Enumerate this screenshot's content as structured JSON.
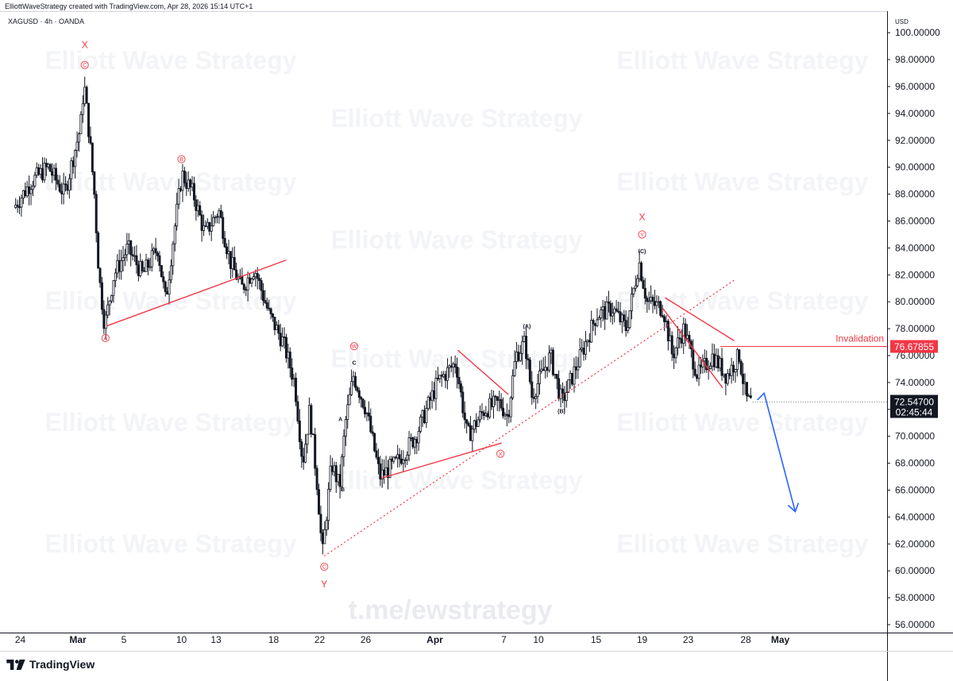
{
  "header": {
    "credit": "ElliottWaveStrategy created with TradingView.com, Apr 28, 2026 15:14 UTC+1",
    "symbol": "XAGUSD · 4h · OANDA",
    "currency": "USD"
  },
  "watermark": {
    "text": "Elliott Wave Strategy",
    "link": "t.me/ewstrategy"
  },
  "brand": {
    "name": "TradingView"
  },
  "colors": {
    "up": "#131722",
    "down": "#131722",
    "annotation_red": "#f23645",
    "projection_blue": "#2962ff",
    "price_tag": "#131722"
  },
  "chart_data": {
    "type": "candlestick",
    "symbol": "XAGUSD",
    "interval": "4h",
    "ylim": [
      55,
      101
    ],
    "y_ticks": [
      {
        "value": 56,
        "label": "56.00000"
      },
      {
        "value": 58,
        "label": "58.00000"
      },
      {
        "value": 60,
        "label": "60.00000"
      },
      {
        "value": 62,
        "label": "62.00000"
      },
      {
        "value": 64,
        "label": "64.00000"
      },
      {
        "value": 66,
        "label": "66.00000"
      },
      {
        "value": 68,
        "label": "68.00000"
      },
      {
        "value": 70,
        "label": "70.00000"
      },
      {
        "value": 72,
        "label": "72.00000"
      },
      {
        "value": 74,
        "label": "74.00000"
      },
      {
        "value": 76,
        "label": "76.00000"
      },
      {
        "value": 78,
        "label": "78.00000"
      },
      {
        "value": 80,
        "label": "80.00000"
      },
      {
        "value": 82,
        "label": "82.00000"
      },
      {
        "value": 84,
        "label": "84.00000"
      },
      {
        "value": 86,
        "label": "86.00000"
      },
      {
        "value": 88,
        "label": "88.00000"
      },
      {
        "value": 90,
        "label": "90.00000"
      },
      {
        "value": 92,
        "label": "92.00000"
      },
      {
        "value": 94,
        "label": "94.00000"
      },
      {
        "value": 96,
        "label": "96.00000"
      },
      {
        "value": 98,
        "label": "98.00000"
      },
      {
        "value": 100,
        "label": "100.00000"
      }
    ],
    "x_ticks": [
      {
        "day": -5,
        "label": "24"
      },
      {
        "day": 0,
        "label": "Mar"
      },
      {
        "day": 4,
        "label": "5"
      },
      {
        "day": 9,
        "label": "10"
      },
      {
        "day": 12,
        "label": "13"
      },
      {
        "day": 17,
        "label": "18"
      },
      {
        "day": 21,
        "label": "22"
      },
      {
        "day": 25,
        "label": "26"
      },
      {
        "day": 31,
        "label": "Apr"
      },
      {
        "day": 37,
        "label": "7"
      },
      {
        "day": 40,
        "label": "10"
      },
      {
        "day": 45,
        "label": "15"
      },
      {
        "day": 49,
        "label": "19"
      },
      {
        "day": 53,
        "label": "23"
      },
      {
        "day": 58,
        "label": "28"
      },
      {
        "day": 61,
        "label": "May"
      }
    ],
    "path_points": [
      {
        "day": -5.4,
        "price": 87
      },
      {
        "day": -3.8,
        "price": 89
      },
      {
        "day": -2.4,
        "price": 90
      },
      {
        "day": -1.0,
        "price": 88
      },
      {
        "day": 0.4,
        "price": 93
      },
      {
        "day": 0.7,
        "price": 96.3
      },
      {
        "day": 1.2,
        "price": 92
      },
      {
        "day": 1.6,
        "price": 88
      },
      {
        "day": 2.0,
        "price": 82
      },
      {
        "day": 2.5,
        "price": 78.2
      },
      {
        "day": 3.3,
        "price": 82
      },
      {
        "day": 4.5,
        "price": 84
      },
      {
        "day": 5.8,
        "price": 82
      },
      {
        "day": 7.1,
        "price": 84
      },
      {
        "day": 7.8,
        "price": 80
      },
      {
        "day": 8.5,
        "price": 85
      },
      {
        "day": 9.2,
        "price": 89.5
      },
      {
        "day": 10.2,
        "price": 88
      },
      {
        "day": 11.2,
        "price": 85
      },
      {
        "day": 12.4,
        "price": 86.8
      },
      {
        "day": 13.4,
        "price": 83
      },
      {
        "day": 14.4,
        "price": 81
      },
      {
        "day": 15.5,
        "price": 82.5
      },
      {
        "day": 16.8,
        "price": 79
      },
      {
        "day": 18.0,
        "price": 77
      },
      {
        "day": 19.0,
        "price": 74
      },
      {
        "day": 19.7,
        "price": 68
      },
      {
        "day": 20.3,
        "price": 72
      },
      {
        "day": 21.0,
        "price": 66
      },
      {
        "day": 21.4,
        "price": 61.1
      },
      {
        "day": 22.2,
        "price": 68
      },
      {
        "day": 22.9,
        "price": 66.2
      },
      {
        "day": 23.4,
        "price": 71
      },
      {
        "day": 24.1,
        "price": 74.5
      },
      {
        "day": 25.2,
        "price": 72
      },
      {
        "day": 26.4,
        "price": 67
      },
      {
        "day": 27.8,
        "price": 68
      },
      {
        "day": 29.5,
        "price": 70
      },
      {
        "day": 31.4,
        "price": 74
      },
      {
        "day": 33.0,
        "price": 75.5
      },
      {
        "day": 34.0,
        "price": 70
      },
      {
        "day": 35.5,
        "price": 72
      },
      {
        "day": 36.8,
        "price": 72.5
      },
      {
        "day": 37.5,
        "price": 71.5
      },
      {
        "day": 38.2,
        "price": 76
      },
      {
        "day": 39.0,
        "price": 77
      },
      {
        "day": 39.6,
        "price": 73
      },
      {
        "day": 41.2,
        "price": 76
      },
      {
        "day": 42.2,
        "price": 72.5
      },
      {
        "day": 43.6,
        "price": 75.5
      },
      {
        "day": 45.2,
        "price": 79
      },
      {
        "day": 46.6,
        "price": 79.5
      },
      {
        "day": 47.8,
        "price": 78
      },
      {
        "day": 48.9,
        "price": 83
      },
      {
        "day": 49.6,
        "price": 80
      },
      {
        "day": 51.0,
        "price": 79.5
      },
      {
        "day": 51.8,
        "price": 76
      },
      {
        "day": 52.8,
        "price": 78
      },
      {
        "day": 54.0,
        "price": 74.5
      },
      {
        "day": 55.3,
        "price": 76
      },
      {
        "day": 56.5,
        "price": 74.5
      },
      {
        "day": 57.6,
        "price": 76
      },
      {
        "day": 58.2,
        "price": 72.8
      },
      {
        "day": 58.5,
        "price": 72.5
      }
    ],
    "last_price": {
      "value": 72.547,
      "label": "72.54700",
      "countdown": "02:45:44"
    },
    "invalidation": {
      "price": 76.67855,
      "label": "Invalidation",
      "price_label": "76.67855"
    },
    "trendlines": [
      {
        "color": "red",
        "style": "solid",
        "from": {
          "day": 2.5,
          "price": 78.2
        },
        "to": {
          "day": 18.1,
          "price": 83.1
        }
      },
      {
        "color": "red",
        "style": "solid",
        "from": {
          "day": 26.4,
          "price": 66.9
        },
        "to": {
          "day": 36.8,
          "price": 69.5
        }
      },
      {
        "color": "red",
        "style": "solid",
        "from": {
          "day": 33.0,
          "price": 76.4
        },
        "to": {
          "day": 37.4,
          "price": 73.1
        }
      },
      {
        "color": "red",
        "style": "solid",
        "from": {
          "day": 51.0,
          "price": 80.3
        },
        "to": {
          "day": 57.0,
          "price": 77.1
        }
      },
      {
        "color": "red",
        "style": "solid",
        "from": {
          "day": 50.8,
          "price": 79.5
        },
        "to": {
          "day": 56.0,
          "price": 73.6
        }
      },
      {
        "color": "red",
        "style": "dotted",
        "from": {
          "day": 21.4,
          "price": 61.1
        },
        "to": {
          "day": 57.0,
          "price": 81.6
        }
      }
    ],
    "projection": [
      {
        "day": 59.0,
        "price": 72.7
      },
      {
        "day": 59.6,
        "price": 73.2
      },
      {
        "day": 62.3,
        "price": 64.4
      }
    ],
    "labels": [
      {
        "text": "X",
        "day": 0.6,
        "price": 99.1,
        "style": "plain-red"
      },
      {
        "text": "C",
        "day": 0.6,
        "price": 97.6,
        "style": "circled-red"
      },
      {
        "text": "A",
        "day": 2.4,
        "price": 77.3,
        "style": "circled-red"
      },
      {
        "text": "B",
        "day": 9.0,
        "price": 90.6,
        "style": "circled-red"
      },
      {
        "text": "A",
        "day": 22.8,
        "price": 71.3,
        "style": "small-black"
      },
      {
        "text": "B",
        "day": 23.0,
        "price": 66.1,
        "style": "small-black"
      },
      {
        "text": "C",
        "day": 24.0,
        "price": 75.5,
        "style": "small-black"
      },
      {
        "text": "W",
        "day": 24.0,
        "price": 76.7,
        "style": "circled-red"
      },
      {
        "text": "C",
        "day": 21.4,
        "price": 60.3,
        "style": "circled-red"
      },
      {
        "text": "Y",
        "day": 21.4,
        "price": 59.0,
        "style": "plain-red"
      },
      {
        "text": "X",
        "day": 36.7,
        "price": 68.7,
        "style": "circled-red"
      },
      {
        "text": "(A)",
        "day": 39.0,
        "price": 78.2,
        "style": "small-black"
      },
      {
        "text": "(B)",
        "day": 42.0,
        "price": 71.9,
        "style": "small-black"
      },
      {
        "text": "(C)",
        "day": 49.0,
        "price": 83.8,
        "style": "small-black"
      },
      {
        "text": "Y",
        "day": 49.0,
        "price": 85.0,
        "style": "circled-red"
      },
      {
        "text": "X",
        "day": 49.0,
        "price": 86.3,
        "style": "plain-red"
      }
    ]
  }
}
